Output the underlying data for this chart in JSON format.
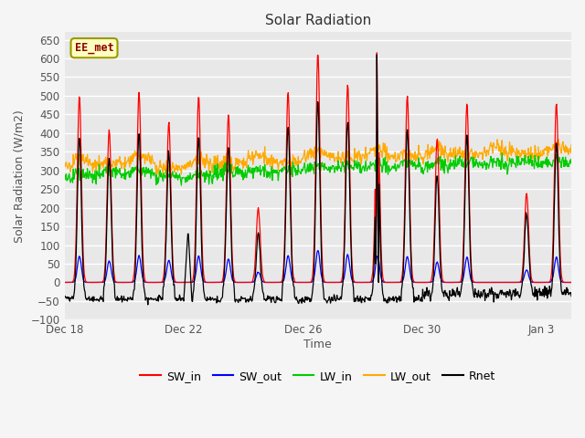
{
  "title": "Solar Radiation",
  "xlabel": "Time",
  "ylabel": "Solar Radiation (W/m2)",
  "ylim": [
    -100,
    670
  ],
  "yticks": [
    -100,
    -50,
    0,
    50,
    100,
    150,
    200,
    250,
    300,
    350,
    400,
    450,
    500,
    550,
    600,
    650
  ],
  "series_colors": {
    "SW_in": "#ff0000",
    "SW_out": "#0000ff",
    "LW_in": "#00cc00",
    "LW_out": "#ffaa00",
    "Rnet": "#000000"
  },
  "annotation_text": "EE_met",
  "bg_color": "#f0f0f0",
  "plot_bg_color": "#e8e8e8",
  "grid_color": "#ffffff",
  "xtick_labels": [
    "Dec 18",
    "Dec 22",
    "Dec 26",
    "Dec 30",
    "Jan 3"
  ],
  "xtick_positions": [
    0,
    4,
    8,
    12,
    16
  ],
  "figsize": [
    6.4,
    4.8
  ],
  "dpi": 100
}
